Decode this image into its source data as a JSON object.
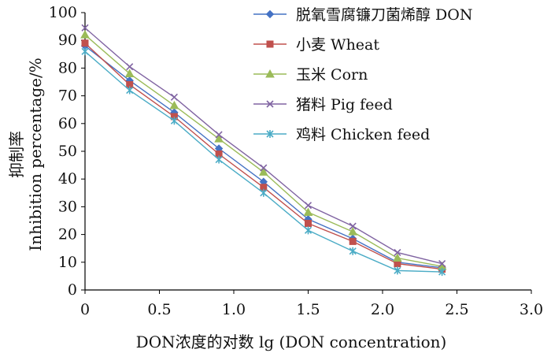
{
  "chart_data": {
    "type": "line",
    "xlabel": "DON浓度的对数  lg (DON concentration)",
    "ylabel_line1": "抑制率",
    "ylabel_line2": "Inhibition percentage/%",
    "xlim": [
      0,
      3.0
    ],
    "ylim": [
      0,
      100
    ],
    "x_ticks": [
      "0",
      "0.5",
      "1.0",
      "1.5",
      "2.0",
      "2.5",
      "3.0"
    ],
    "y_ticks": [
      "0",
      "10",
      "20",
      "30",
      "40",
      "50",
      "60",
      "70",
      "80",
      "90",
      "100"
    ],
    "grid": false,
    "legend_position": "top-right",
    "x": [
      0,
      0.3,
      0.6,
      0.9,
      1.2,
      1.5,
      1.8,
      2.1,
      2.4
    ],
    "series": [
      {
        "name": "脱氧雪腐镰刀菌烯醇 DON",
        "color": "#4472C4",
        "marker": "diamond",
        "values": [
          88,
          75.5,
          64,
          51,
          39,
          25.5,
          18.5,
          10,
          8
        ]
      },
      {
        "name": "小麦 Wheat",
        "color": "#C0504D",
        "marker": "square",
        "values": [
          89,
          74,
          62.5,
          49,
          37,
          24,
          17.5,
          9.5,
          7.5
        ]
      },
      {
        "name": "玉米 Corn",
        "color": "#9BBB59",
        "marker": "triangle",
        "values": [
          92,
          78,
          66.5,
          54.5,
          42.5,
          28,
          21,
          11.5,
          8.5
        ]
      },
      {
        "name": "猪料 Pig feed",
        "color": "#8064A2",
        "marker": "x",
        "values": [
          94.5,
          80.5,
          69.5,
          56,
          44,
          30.5,
          23,
          13.5,
          9.5
        ]
      },
      {
        "name": "鸡料 Chicken feed",
        "color": "#4BACC6",
        "marker": "star",
        "values": [
          86,
          72,
          61,
          47,
          35,
          21.5,
          14,
          7,
          6.5
        ]
      }
    ]
  }
}
